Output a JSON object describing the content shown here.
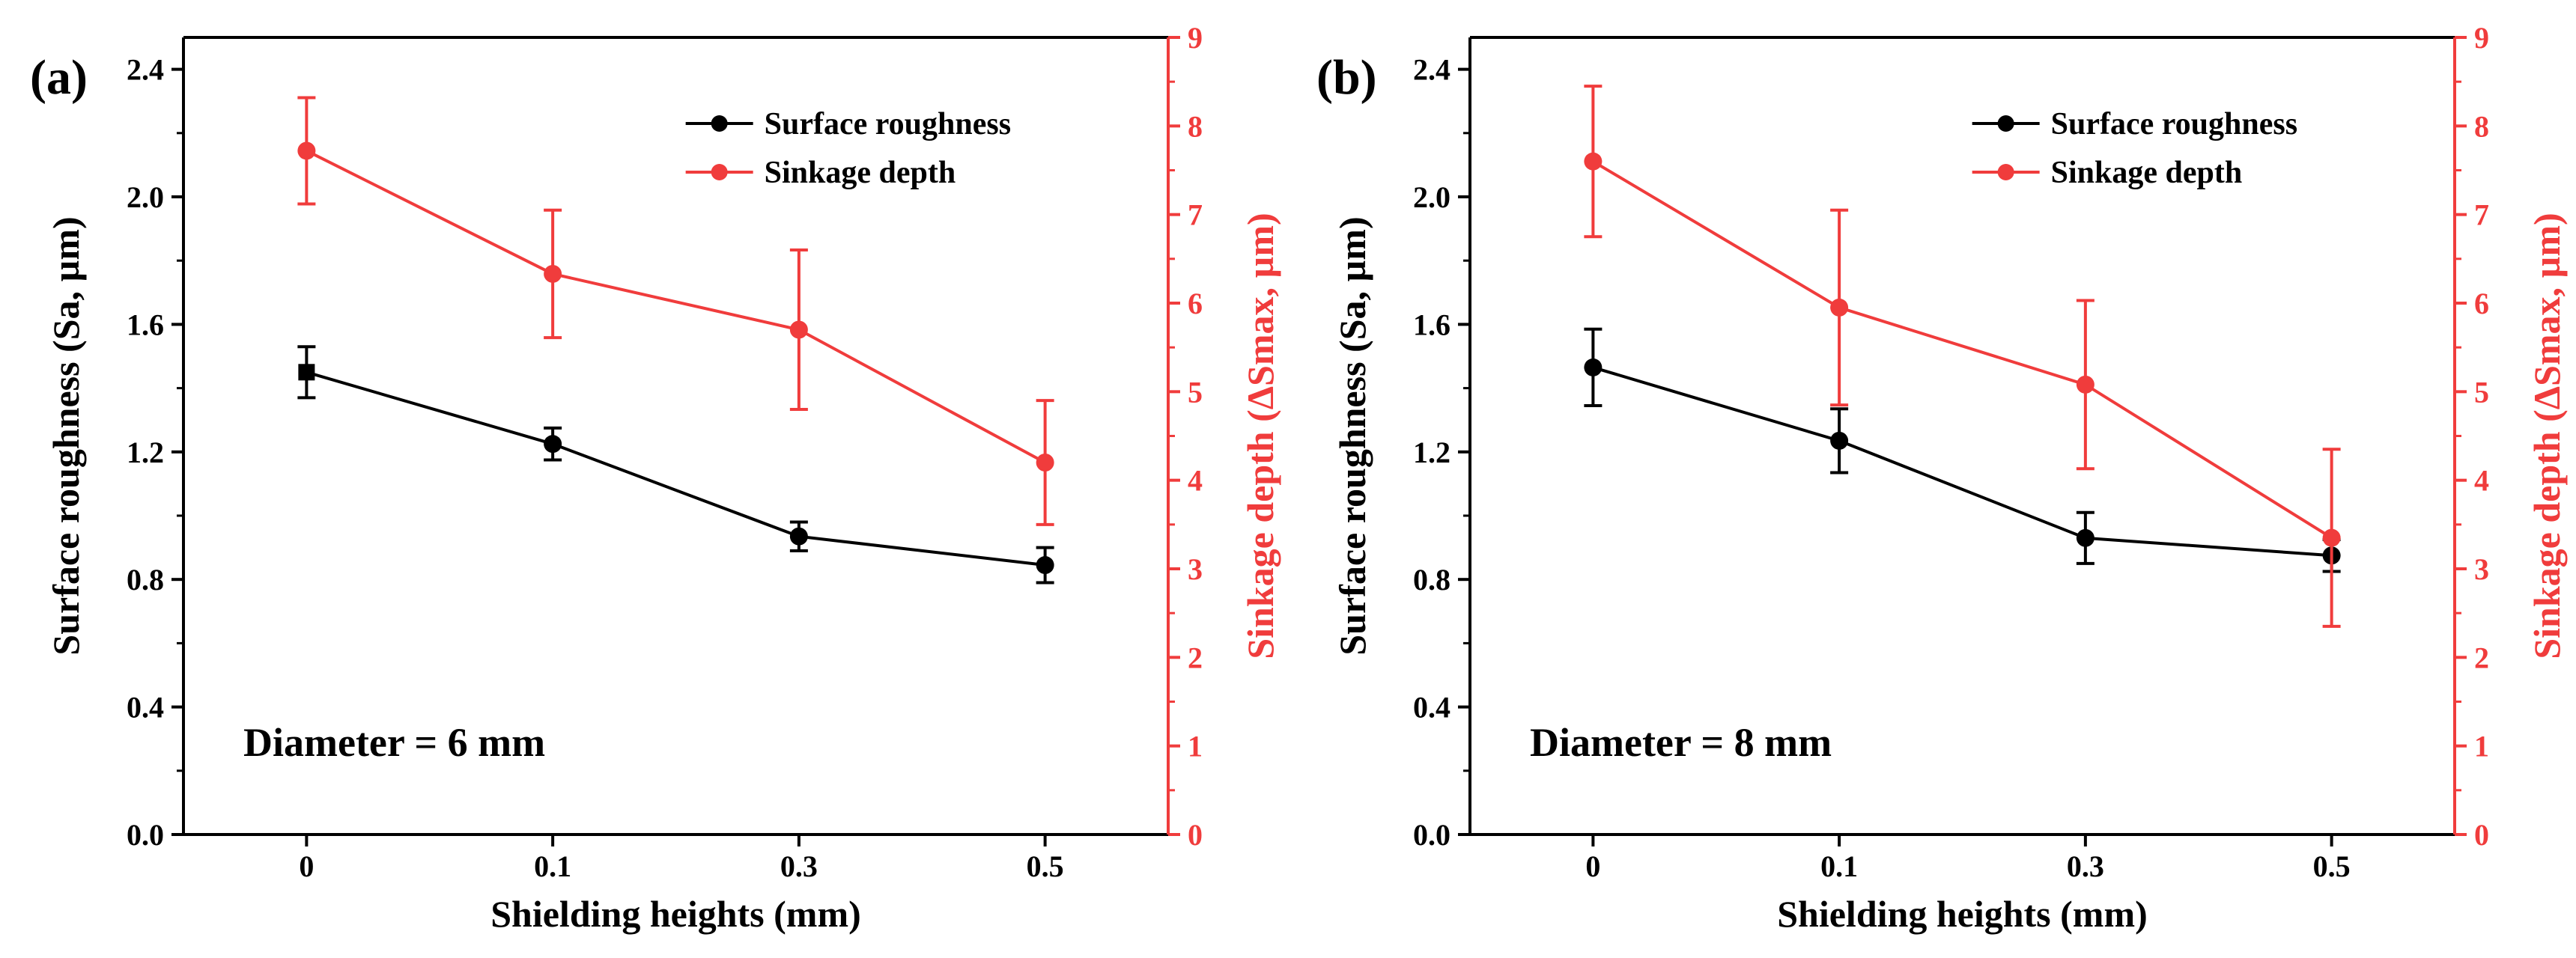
{
  "chart_data": [
    {
      "type": "line",
      "panel_label": "(a)",
      "annotation": "Diameter = 6 mm",
      "categories": [
        "0",
        "0.1",
        "0.3",
        "0.5"
      ],
      "xlabel": "Shielding heights (mm)",
      "ylabel_left": "Surface roughness (Sa, µm)",
      "ylabel_right": "Sinkage depth (ΔSmax, µm)",
      "ylim_left": [
        0,
        2.5
      ],
      "ylim_right": [
        0,
        9
      ],
      "yticks_left": [
        "0.0",
        "0.4",
        "0.8",
        "1.2",
        "1.6",
        "2.0",
        "2.4"
      ],
      "yticks_right": [
        "0",
        "1",
        "2",
        "3",
        "4",
        "5",
        "6",
        "7",
        "8",
        "9"
      ],
      "legend_position": "top-right",
      "series": [
        {
          "name": "Surface roughness",
          "axis": "left",
          "color": "#000000",
          "values": [
            1.45,
            1.225,
            0.935,
            0.845
          ],
          "errors": [
            0.08,
            0.05,
            0.045,
            0.055
          ]
        },
        {
          "name": "Sinkage depth",
          "axis": "right",
          "color": "#f03c3c",
          "values": [
            7.72,
            6.33,
            5.7,
            4.2
          ],
          "errors": [
            0.6,
            0.72,
            0.9,
            0.7
          ]
        }
      ]
    },
    {
      "type": "line",
      "panel_label": "(b)",
      "annotation": "Diameter = 8 mm",
      "categories": [
        "0",
        "0.1",
        "0.3",
        "0.5"
      ],
      "xlabel": "Shielding heights (mm)",
      "ylabel_left": "Surface roughness (Sa, µm)",
      "ylabel_right": "Sinkage depth (ΔSmax, µm)",
      "ylim_left": [
        0,
        2.5
      ],
      "ylim_right": [
        0,
        9
      ],
      "yticks_left": [
        "0.0",
        "0.4",
        "0.8",
        "1.2",
        "1.6",
        "2.0",
        "2.4"
      ],
      "yticks_right": [
        "0",
        "1",
        "2",
        "3",
        "4",
        "5",
        "6",
        "7",
        "8",
        "9"
      ],
      "legend_position": "top-right",
      "series": [
        {
          "name": "Surface roughness",
          "axis": "left",
          "color": "#000000",
          "values": [
            1.465,
            1.235,
            0.93,
            0.875
          ],
          "errors": [
            0.12,
            0.1,
            0.08,
            0.05
          ]
        },
        {
          "name": "Sinkage depth",
          "axis": "right",
          "color": "#f03c3c",
          "values": [
            7.6,
            5.95,
            5.08,
            3.35
          ],
          "errors": [
            0.85,
            1.1,
            0.95,
            1.0
          ]
        }
      ]
    }
  ]
}
